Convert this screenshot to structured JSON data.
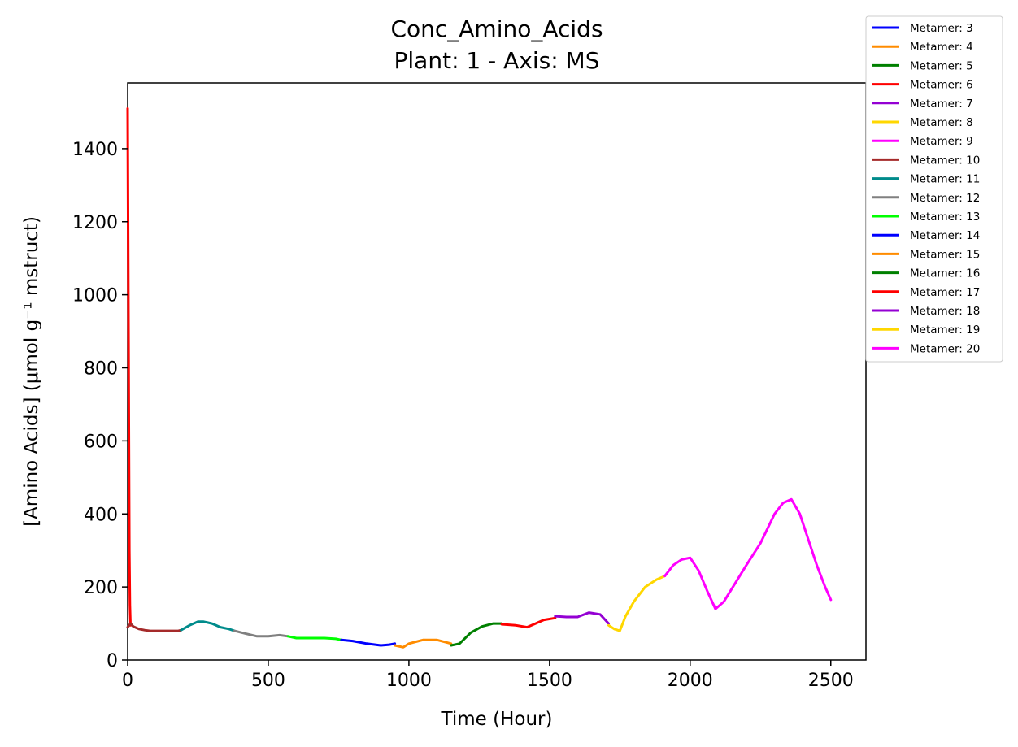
{
  "chart_data": {
    "type": "line",
    "title": "Conc_Amino_Acids",
    "subtitle": "Plant: 1 - Axis: MS",
    "xlabel": "Time (Hour)",
    "ylabel": "[Amino Acids] (μmol g⁻¹ mstruct)",
    "xlim": [
      0,
      2625
    ],
    "ylim": [
      0,
      1580
    ],
    "xticks": [
      0,
      500,
      1000,
      1500,
      2000,
      2500
    ],
    "yticks": [
      0,
      200,
      400,
      600,
      800,
      1000,
      1200,
      1400
    ],
    "grid": false,
    "legend": "outside-top-right",
    "series": [
      {
        "name": "Metamer: 3",
        "color": "#0000ff",
        "x": [],
        "y": []
      },
      {
        "name": "Metamer: 4",
        "color": "#ff8c00",
        "x": [],
        "y": []
      },
      {
        "name": "Metamer: 5",
        "color": "#008000",
        "x": [],
        "y": []
      },
      {
        "name": "Metamer: 6",
        "color": "#ff0000",
        "x": [
          0,
          2,
          4,
          6,
          8,
          10
        ],
        "y": [
          1510,
          1100,
          700,
          300,
          150,
          95
        ]
      },
      {
        "name": "Metamer: 7",
        "color": "#9400d3",
        "x": [],
        "y": []
      },
      {
        "name": "Metamer: 8",
        "color": "#ffd700",
        "x": [],
        "y": []
      },
      {
        "name": "Metamer: 9",
        "color": "#ff00ff",
        "x": [],
        "y": []
      },
      {
        "name": "Metamer: 10",
        "color": "#a52a2a",
        "x": [
          0,
          10,
          20,
          40,
          60,
          80,
          100,
          120,
          140,
          160,
          180,
          190
        ],
        "y": [
          90,
          100,
          92,
          85,
          82,
          80,
          80,
          80,
          80,
          80,
          80,
          82
        ]
      },
      {
        "name": "Metamer: 11",
        "color": "#008b8b",
        "x": [
          190,
          220,
          250,
          270,
          300,
          330,
          360,
          380
        ],
        "y": [
          82,
          95,
          105,
          105,
          100,
          90,
          85,
          80
        ]
      },
      {
        "name": "Metamer: 12",
        "color": "#808080",
        "x": [
          380,
          420,
          460,
          500,
          540,
          570
        ],
        "y": [
          80,
          72,
          65,
          65,
          68,
          65
        ]
      },
      {
        "name": "Metamer: 13",
        "color": "#00ff00",
        "x": [
          570,
          600,
          650,
          700,
          740,
          760
        ],
        "y": [
          65,
          60,
          60,
          60,
          58,
          55
        ]
      },
      {
        "name": "Metamer: 14",
        "color": "#0000ff",
        "x": [
          760,
          800,
          850,
          900,
          930,
          950
        ],
        "y": [
          55,
          52,
          45,
          40,
          42,
          45
        ]
      },
      {
        "name": "Metamer: 15",
        "color": "#ff8c00",
        "x": [
          950,
          980,
          1000,
          1050,
          1100,
          1150
        ],
        "y": [
          40,
          35,
          45,
          55,
          55,
          45
        ]
      },
      {
        "name": "Metamer: 16",
        "color": "#008000",
        "x": [
          1150,
          1180,
          1220,
          1260,
          1300,
          1330
        ],
        "y": [
          40,
          45,
          75,
          92,
          100,
          100
        ]
      },
      {
        "name": "Metamer: 17",
        "color": "#ff0000",
        "x": [
          1330,
          1380,
          1420,
          1450,
          1480,
          1520
        ],
        "y": [
          98,
          95,
          90,
          100,
          110,
          115
        ]
      },
      {
        "name": "Metamer: 18",
        "color": "#9400d3",
        "x": [
          1520,
          1560,
          1600,
          1640,
          1680,
          1710
        ],
        "y": [
          120,
          118,
          118,
          130,
          125,
          100
        ]
      },
      {
        "name": "Metamer: 19",
        "color": "#ffd700",
        "x": [
          1710,
          1730,
          1750,
          1770,
          1800,
          1840,
          1880,
          1910
        ],
        "y": [
          95,
          85,
          80,
          120,
          160,
          200,
          220,
          230
        ]
      },
      {
        "name": "Metamer: 20",
        "color": "#ff00ff",
        "x": [
          1910,
          1940,
          1970,
          2000,
          2030,
          2060,
          2090,
          2120,
          2160,
          2200,
          2250,
          2300,
          2330,
          2360,
          2390,
          2420,
          2450,
          2480,
          2500
        ],
        "y": [
          230,
          260,
          275,
          280,
          245,
          190,
          140,
          160,
          210,
          260,
          320,
          400,
          430,
          440,
          400,
          330,
          260,
          200,
          165
        ]
      }
    ]
  }
}
